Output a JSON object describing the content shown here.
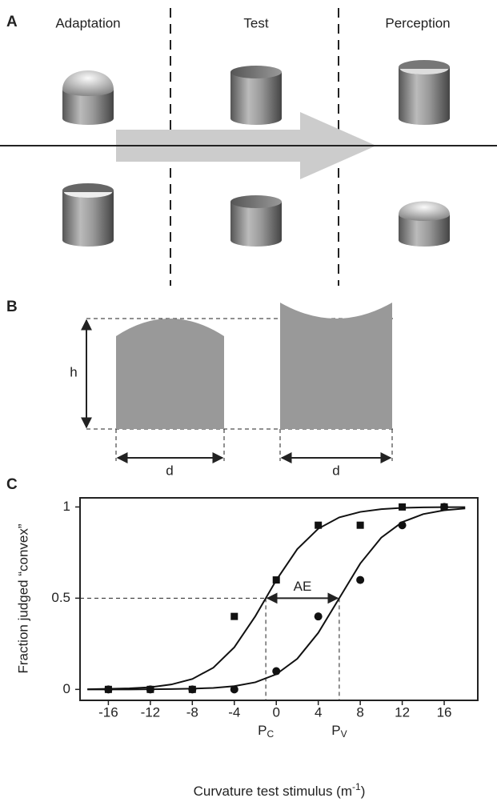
{
  "panel_labels": [
    "A",
    "B",
    "C"
  ],
  "panel_a": {
    "columns": [
      "Adaptation",
      "Test",
      "Perception"
    ]
  },
  "panel_b": {
    "height_label": "h",
    "width_labels": [
      "d",
      "d"
    ]
  },
  "chart_data": {
    "type": "scatter",
    "xlim": [
      -18.7,
      19.2
    ],
    "ylim": [
      -0.06,
      1.05
    ],
    "xticks": [
      -16,
      -12,
      -8,
      -4,
      0,
      4,
      8,
      12,
      16
    ],
    "yticks": [
      0,
      0.5,
      1
    ],
    "y_label": "Fraction judged “convex”",
    "x_label": {
      "text": "Curvature test stimulus (m",
      "sup": "-1",
      "close": ")"
    },
    "series": [
      {
        "marker": "square",
        "color": "#111111",
        "x": [
          -16,
          -12,
          -8,
          -4,
          0,
          4,
          8,
          12,
          16
        ],
        "values": [
          0,
          0,
          0,
          0.4,
          0.6,
          0.9,
          0.9,
          1,
          1
        ]
      },
      {
        "marker": "circle",
        "color": "#111111",
        "x": [
          -16,
          -12,
          -8,
          -4,
          0,
          4,
          8,
          12,
          16
        ],
        "values": [
          0,
          0,
          0,
          0,
          0.1,
          0.4,
          0.6,
          0.9,
          1
        ]
      }
    ],
    "fits": [
      {
        "color": "#111111",
        "x": [
          -18,
          -16,
          -14,
          -12,
          -10,
          -8,
          -6,
          -4,
          -2,
          0,
          2,
          4,
          6,
          8,
          10,
          12,
          14,
          16,
          18
        ],
        "values": [
          0.001,
          0.003,
          0.006,
          0.012,
          0.027,
          0.057,
          0.119,
          0.231,
          0.401,
          0.599,
          0.769,
          0.881,
          0.943,
          0.973,
          0.988,
          0.995,
          0.998,
          0.999,
          0.999
        ]
      },
      {
        "color": "#111111",
        "x": [
          -18,
          -16,
          -14,
          -12,
          -10,
          -8,
          -6,
          -4,
          -2,
          0,
          2,
          4,
          6,
          8,
          10,
          12,
          14,
          16,
          18
        ],
        "values": [
          0,
          0,
          0,
          0.001,
          0.002,
          0.004,
          0.008,
          0.018,
          0.039,
          0.083,
          0.168,
          0.31,
          0.5,
          0.69,
          0.832,
          0.917,
          0.961,
          0.982,
          0.992
        ]
      }
    ],
    "criterion": 0.5,
    "annotation": "AE",
    "markers": [
      {
        "label": "P",
        "sub": "C",
        "x": -1
      },
      {
        "label": "P",
        "sub": "V",
        "x": 6
      }
    ]
  }
}
